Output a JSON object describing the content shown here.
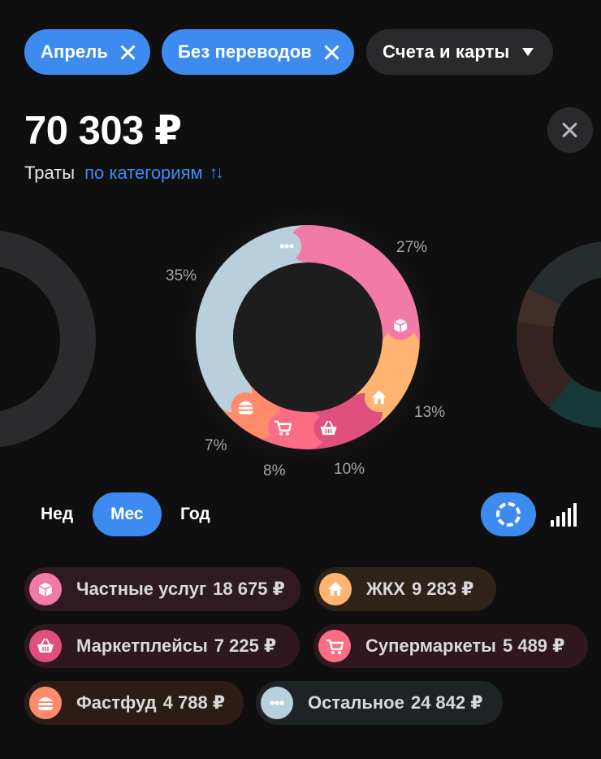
{
  "filters": {
    "month": {
      "label": "Апрель"
    },
    "transfers": {
      "label": "Без переводов"
    },
    "accounts": {
      "label": "Счета и карты"
    }
  },
  "summary": {
    "total": "70 303 ₽",
    "label": "Траты",
    "grouping": "по категориям",
    "sort_icon": "↑↓"
  },
  "chart_data": {
    "type": "pie",
    "style": "donut",
    "categories": [
      "Частные услуги",
      "ЖКХ",
      "Маркетплейсы",
      "Супермаркеты",
      "Фастфуд",
      "Остальное"
    ],
    "values": [
      18675,
      9283,
      7225,
      5489,
      4788,
      24842
    ],
    "percent_labels": [
      "27%",
      "13%",
      "10%",
      "8%",
      "7%",
      "35%"
    ],
    "colors": [
      "#f17aa7",
      "#ffb571",
      "#e0507c",
      "#fa6d85",
      "#ff8b6b",
      "#b9d0dc"
    ],
    "icons": [
      "box-icon",
      "house-icon",
      "basket-icon",
      "cart-icon",
      "burger-icon",
      "dots-icon"
    ]
  },
  "periods": {
    "week": "Нед",
    "month": "Мес",
    "year": "Год",
    "selected": "month"
  },
  "view_toggle": {
    "donut": "donut-icon",
    "bars": "bar-chart-icon"
  },
  "categories": [
    {
      "name": "Частные услуги",
      "shown_name": "Частные услуг",
      "amount": "18 675 ₽",
      "color": "#f17aa7",
      "bg": "#2f1a22",
      "icon": "box-icon"
    },
    {
      "name": "ЖКХ",
      "shown_name": "ЖКХ",
      "amount": "9 283 ₽",
      "color": "#ffb571",
      "bg": "#2e2317",
      "icon": "house-icon"
    },
    {
      "name": "Маркетплейсы",
      "shown_name": "Маркетплейсы",
      "amount": "7 225 ₽",
      "color": "#e0507c",
      "bg": "#2d1820",
      "icon": "basket-icon"
    },
    {
      "name": "Супермаркеты",
      "shown_name": "Супермаркеты",
      "amount": "5 489 ₽",
      "color": "#fa6d85",
      "bg": "#2e181d",
      "icon": "cart-icon"
    },
    {
      "name": "Фастфуд",
      "shown_name": "Фастфуд",
      "amount": "4 788 ₽",
      "color": "#ff8b6b",
      "bg": "#2d1c16",
      "icon": "burger-icon"
    },
    {
      "name": "Остальное",
      "shown_name": "Остальное",
      "amount": "24 842 ₽",
      "color": "#b9d0dc",
      "bg": "#1e2326",
      "icon": "dots-icon"
    }
  ]
}
